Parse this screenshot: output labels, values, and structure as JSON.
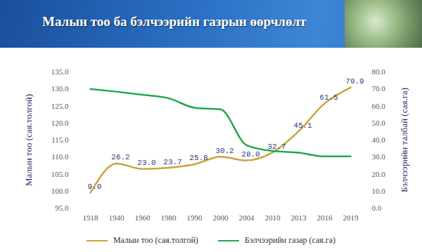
{
  "chart_data": {
    "type": "line",
    "title": "Малын тоо ба бэлчээрийн газрын өөрчлөлт",
    "categories": [
      "1918",
      "1940",
      "1960",
      "1980",
      "1990",
      "2000",
      "2004",
      "2010",
      "2013",
      "2016",
      "2019"
    ],
    "y_label": "Малын тоо (сая.толгой)",
    "y2_label": "Бэлчээрийн талбай (сая.га)",
    "ylim": [
      95,
      135
    ],
    "yticks": [
      {
        "value": 95,
        "label": "95.0"
      },
      {
        "value": 100,
        "label": "100.0"
      },
      {
        "value": 105,
        "label": "105.0"
      },
      {
        "value": 110,
        "label": "110.0"
      },
      {
        "value": 115,
        "label": "115.0"
      },
      {
        "value": 120,
        "label": "120.0"
      },
      {
        "value": 125,
        "label": "125.0"
      },
      {
        "value": 130,
        "label": "130.0"
      },
      {
        "value": 135,
        "label": "135.0"
      }
    ],
    "y2lim": [
      0,
      80
    ],
    "y2ticks": [
      {
        "value": 0,
        "label": "0.0"
      },
      {
        "value": 10,
        "label": "10.0"
      },
      {
        "value": 20,
        "label": "20.0"
      },
      {
        "value": 30,
        "label": "30.0"
      },
      {
        "value": 40,
        "label": "40.0"
      },
      {
        "value": 50,
        "label": "50.0"
      },
      {
        "value": 60,
        "label": "60.0"
      },
      {
        "value": 70,
        "label": "70.0"
      },
      {
        "value": 80,
        "label": "80.0"
      }
    ],
    "grid": false,
    "legend": "bottom",
    "series": [
      {
        "name": "Малын тоо (сая.толгой)",
        "color": "#c9a43b",
        "axis": "y2",
        "data_labels": true,
        "values": [
          9.0,
          26.2,
          23.0,
          23.7,
          25.8,
          30.2,
          28.0,
          32.7,
          45.1,
          61.5,
          70.9
        ],
        "value_labels": [
          "9.0",
          "26.2",
          "23.0",
          "23.7",
          "25.8",
          "30.2",
          "28.0",
          "32.7",
          "45.1",
          "61.5",
          "70.9"
        ]
      },
      {
        "name": "Бэлчээрийн газар (сая.га)",
        "color": "#1fa84c",
        "axis": "y",
        "data_labels": false,
        "values": [
          130.0,
          129.2,
          128.3,
          127.3,
          124.5,
          124.0,
          113.5,
          111.8,
          111.3,
          110.2,
          110.2
        ]
      }
    ]
  }
}
